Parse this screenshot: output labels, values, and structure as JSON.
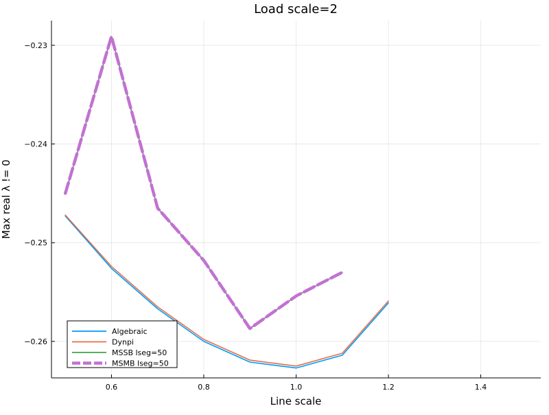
{
  "chart_data": {
    "type": "line",
    "title": "Load scale=2",
    "xlabel": "Line scale",
    "ylabel": "Max real λ != 0",
    "xlim": [
      0.47,
      1.53
    ],
    "ylim": [
      -0.2637,
      -0.2275
    ],
    "x_ticks": [
      {
        "value": 0.6,
        "label": "0.6"
      },
      {
        "value": 0.8,
        "label": "0.8"
      },
      {
        "value": 1.0,
        "label": "1.0"
      },
      {
        "value": 1.2,
        "label": "1.2"
      },
      {
        "value": 1.4,
        "label": "1.4"
      }
    ],
    "y_ticks": [
      {
        "value": -0.23,
        "label": "−0.23"
      },
      {
        "value": -0.24,
        "label": "−0.24"
      },
      {
        "value": -0.25,
        "label": "−0.25"
      },
      {
        "value": -0.26,
        "label": "−0.26"
      }
    ],
    "grid": true,
    "legend_position": "bottom-left",
    "series": [
      {
        "name": "Algebraic",
        "color": "#009AFA",
        "style": "solid",
        "x": [
          0.5,
          0.6,
          0.7,
          0.8,
          0.9,
          1.0,
          1.1,
          1.2
        ],
        "y": [
          -0.2473,
          -0.2526,
          -0.2567,
          -0.26,
          -0.2621,
          -0.2627,
          -0.2614,
          -0.2561
        ]
      },
      {
        "name": "Dynpi",
        "color": "#E26F46",
        "style": "solid",
        "x": [
          0.5,
          0.6,
          0.7,
          0.8,
          0.9,
          1.0,
          1.1,
          1.2
        ],
        "y": [
          -0.2472,
          -0.2524,
          -0.2565,
          -0.2598,
          -0.2619,
          -0.2625,
          -0.2612,
          -0.2559
        ]
      },
      {
        "name": "MSSB lseg=50",
        "color": "#3DA44D",
        "style": "solid",
        "x": [
          0.5,
          0.6,
          0.7,
          0.8,
          0.9,
          1.0,
          1.1
        ],
        "y": [
          -0.245,
          -0.2291,
          -0.2465,
          -0.2518,
          -0.2587,
          -0.2554,
          -0.253
        ]
      },
      {
        "name": "MSMB lseg=50",
        "color": "#C271D2",
        "style": "dashed",
        "x": [
          0.5,
          0.6,
          0.7,
          0.8,
          0.9,
          1.0,
          1.1
        ],
        "y": [
          -0.245,
          -0.2291,
          -0.2465,
          -0.2518,
          -0.2587,
          -0.2554,
          -0.253
        ]
      }
    ]
  }
}
